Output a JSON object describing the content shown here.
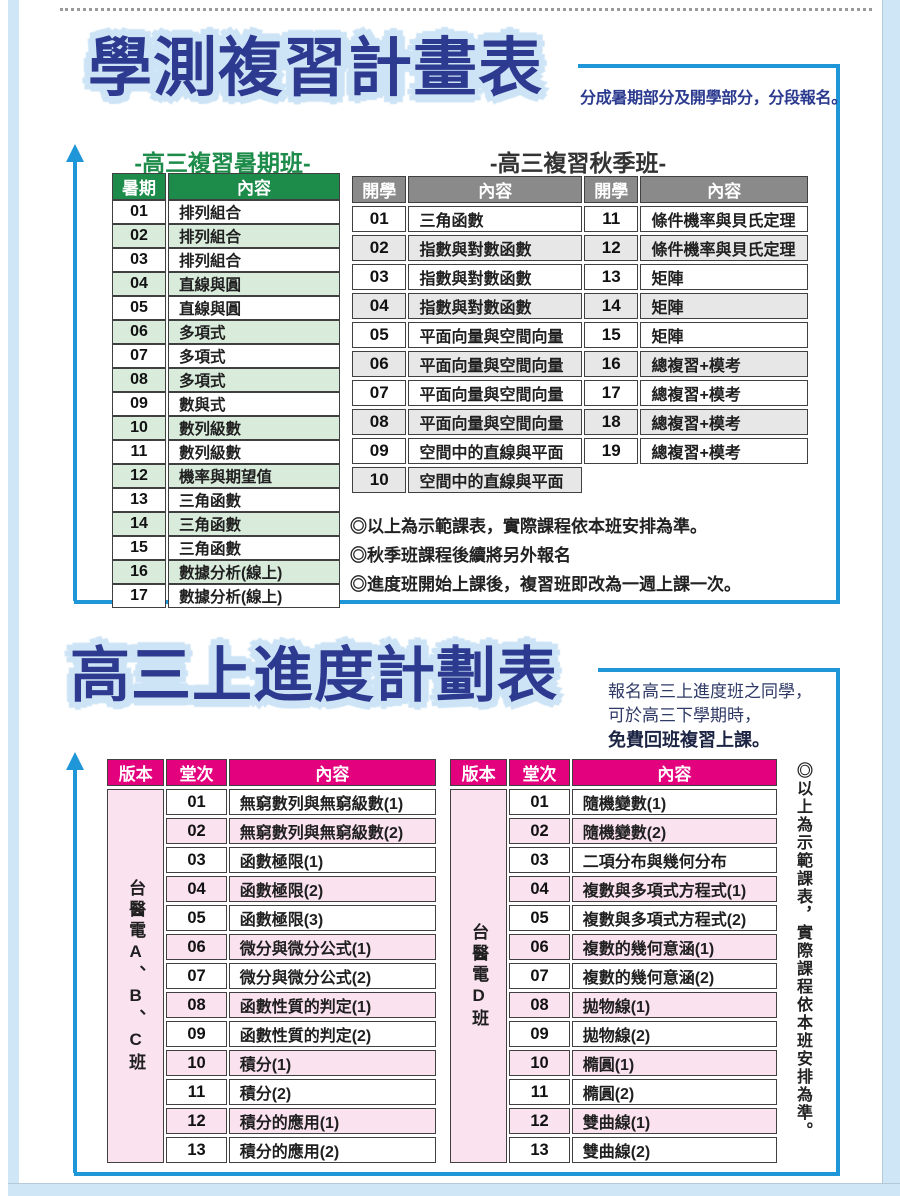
{
  "colors": {
    "accent_blue": "#1e96d7",
    "title_navy": "#2c3a90",
    "title_glow": "#cde4f6",
    "summer_green": "#1d8c4a",
    "summer_row_green": "#d9ecdb",
    "autumn_gray": "#8a8a8a",
    "autumn_row_gray": "#e7e7e7",
    "progress_magenta": "#e3017d",
    "progress_row_pink": "#fbe2ef",
    "page_edge_blue": "#cfe6f6"
  },
  "section1": {
    "title": "學測複習計畫表",
    "note": "分成暑期部分及開學部分，分段報名。",
    "summer": {
      "title": "-高三複習暑期班-",
      "headers": [
        "暑期",
        "內容"
      ],
      "rows": [
        [
          "01",
          "排列組合"
        ],
        [
          "02",
          "排列組合"
        ],
        [
          "03",
          "排列組合"
        ],
        [
          "04",
          "直線與圓"
        ],
        [
          "05",
          "直線與圓"
        ],
        [
          "06",
          "多項式"
        ],
        [
          "07",
          "多項式"
        ],
        [
          "08",
          "多項式"
        ],
        [
          "09",
          "數與式"
        ],
        [
          "10",
          "數列級數"
        ],
        [
          "11",
          "數列級數"
        ],
        [
          "12",
          "機率與期望值"
        ],
        [
          "13",
          "三角函數"
        ],
        [
          "14",
          "三角函數"
        ],
        [
          "15",
          "三角函數"
        ],
        [
          "16",
          "數據分析(線上)"
        ],
        [
          "17",
          "數據分析(線上)"
        ]
      ]
    },
    "autumn": {
      "title": "-高三複習秋季班-",
      "headers": [
        "開學",
        "內容",
        "開學",
        "內容"
      ],
      "rows": [
        [
          "01",
          "三角函數",
          "11",
          "條件機率與貝氏定理"
        ],
        [
          "02",
          "指數與對數函數",
          "12",
          "條件機率與貝氏定理"
        ],
        [
          "03",
          "指數與對數函數",
          "13",
          "矩陣"
        ],
        [
          "04",
          "指數與對數函數",
          "14",
          "矩陣"
        ],
        [
          "05",
          "平面向量與空間向量",
          "15",
          "矩陣"
        ],
        [
          "06",
          "平面向量與空間向量",
          "16",
          "總複習+模考"
        ],
        [
          "07",
          "平面向量與空間向量",
          "17",
          "總複習+模考"
        ],
        [
          "08",
          "平面向量與空間向量",
          "18",
          "總複習+模考"
        ],
        [
          "09",
          "空間中的直線與平面",
          "19",
          "總複習+模考"
        ],
        [
          "10",
          "空間中的直線與平面"
        ]
      ]
    },
    "notes": [
      "◎以上為示範課表，實際課程依本班安排為準。",
      "◎秋季班課程後續將另外報名",
      "◎進度班開始上課後，複習班即改為一週上課一次。"
    ]
  },
  "section2": {
    "title": "高三上進度計劃表",
    "note_lines": [
      "報名高三上進度班之同學，",
      "可於高三下學期時，",
      "免費回班複習上課。"
    ],
    "table_abc": {
      "headers": [
        "版本",
        "堂次",
        "內容"
      ],
      "version": "台醫電A、B、C班",
      "rows": [
        [
          "01",
          "無窮數列與無窮級數(1)"
        ],
        [
          "02",
          "無窮數列與無窮級數(2)"
        ],
        [
          "03",
          "函數極限(1)"
        ],
        [
          "04",
          "函數極限(2)"
        ],
        [
          "05",
          "函數極限(3)"
        ],
        [
          "06",
          "微分與微分公式(1)"
        ],
        [
          "07",
          "微分與微分公式(2)"
        ],
        [
          "08",
          "函數性質的判定(1)"
        ],
        [
          "09",
          "函數性質的判定(2)"
        ],
        [
          "10",
          "積分(1)"
        ],
        [
          "11",
          "積分(2)"
        ],
        [
          "12",
          "積分的應用(1)"
        ],
        [
          "13",
          "積分的應用(2)"
        ]
      ]
    },
    "table_d": {
      "headers": [
        "版本",
        "堂次",
        "內容"
      ],
      "version": "台醫電D班",
      "rows": [
        [
          "01",
          "隨機變數(1)"
        ],
        [
          "02",
          "隨機變數(2)"
        ],
        [
          "03",
          "二項分布與幾何分布"
        ],
        [
          "04",
          "複數與多項式方程式(1)"
        ],
        [
          "05",
          "複數與多項式方程式(2)"
        ],
        [
          "06",
          "複數的幾何意涵(1)"
        ],
        [
          "07",
          "複數的幾何意涵(2)"
        ],
        [
          "08",
          "拋物線(1)"
        ],
        [
          "09",
          "拋物線(2)"
        ],
        [
          "10",
          "橢圓(1)"
        ],
        [
          "11",
          "橢圓(2)"
        ],
        [
          "12",
          "雙曲線(1)"
        ],
        [
          "13",
          "雙曲線(2)"
        ]
      ]
    },
    "side_note": "◎以上為示範課表，實際課程依本班安排為準。"
  }
}
